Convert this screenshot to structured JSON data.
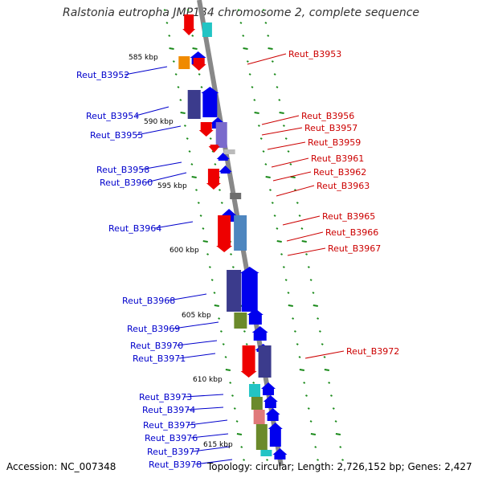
{
  "title": "Ralstonia eutropha JMP134 chromosome 2, complete sequence",
  "footer": {
    "accession": "Accession: NC_007348",
    "topology": "Topology: circular; Length: 2,726,152 bp; Genes: 2,427"
  },
  "colors": {
    "forward": "#0000ee",
    "reverse": "#ee0000",
    "backbone": "#888888",
    "ticks": "#1a8a1a",
    "label_forward": "#0000cc",
    "label_reverse": "#cc0000"
  },
  "scale_labels": [
    "585 kbp",
    "590 kbp",
    "595 kbp",
    "600 kbp",
    "605 kbp",
    "610 kbp",
    "615 kbp"
  ],
  "left_labels": [
    "Reut_B3952",
    "Reut_B3954",
    "Reut_B3955",
    "Reut_B3958",
    "Reut_B3960",
    "Reut_B3964",
    "Reut_B3968",
    "Reut_B3969",
    "Reut_B3970",
    "Reut_B3971",
    "Reut_B3973",
    "Reut_B3974",
    "Reut_B3975",
    "Reut_B3976",
    "Reut_B3977",
    "Reut_B3978"
  ],
  "right_labels": [
    "Reut_B3953",
    "Reut_B3956",
    "Reut_B3957",
    "Reut_B3959",
    "Reut_B3961",
    "Reut_B3962",
    "Reut_B3963",
    "Reut_B3965",
    "Reut_B3966",
    "Reut_B3967",
    "Reut_B3972"
  ]
}
